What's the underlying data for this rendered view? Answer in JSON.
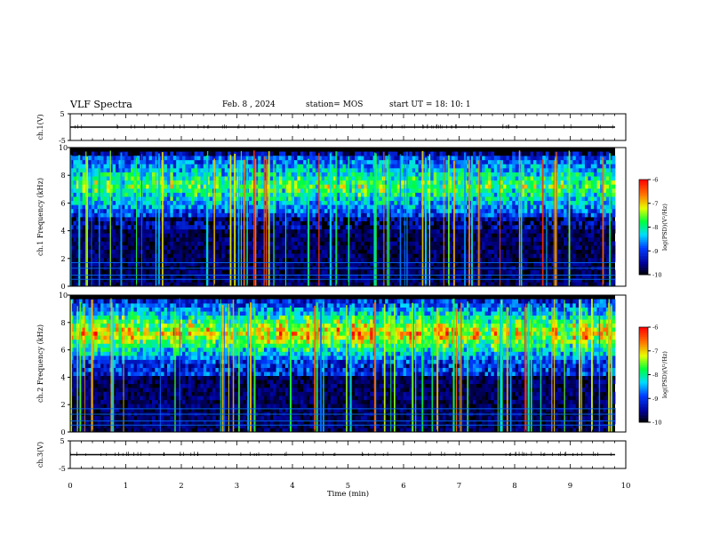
{
  "header": {
    "title": "VLF Spectra",
    "date": "Feb. 8 , 2024",
    "station": "station= MOS",
    "start": "start UT =  18: 10: 1"
  },
  "chart_data": [
    {
      "type": "line",
      "name": "ch1-waveform",
      "ylabel": "ch.1(V)",
      "ylim": [
        -5,
        5
      ],
      "yticks": [
        5,
        -5
      ],
      "xlim": [
        0,
        10
      ],
      "trace_level": 0
    },
    {
      "type": "heatmap",
      "name": "ch1-spectrogram",
      "ylabel": "ch.1 Frequency (kHz)",
      "ylim": [
        0,
        10
      ],
      "yticks": [
        0,
        2,
        4,
        6,
        8,
        10
      ],
      "xlim": [
        0,
        9.8
      ],
      "colorbar": {
        "label": "log(PSD)(V²/Hz)",
        "range": [
          -10,
          -6
        ],
        "ticks": [
          -6,
          -7,
          -8,
          -9,
          -10
        ]
      },
      "dominant_band_khz": [
        5,
        9.5
      ],
      "narrowband_lines_khz": [
        0.5,
        0.8,
        1.3,
        1.7
      ]
    },
    {
      "type": "heatmap",
      "name": "ch2-spectrogram",
      "ylabel": "ch.2 Frequency (kHz)",
      "ylim": [
        0,
        10
      ],
      "yticks": [
        0,
        2,
        4,
        6,
        8,
        10
      ],
      "xlim": [
        0,
        9.8
      ],
      "colorbar": {
        "label": "log(PSD)(V²/Hz)",
        "range": [
          -10,
          -6
        ],
        "ticks": [
          -6,
          -7,
          -8,
          -9,
          -10
        ]
      },
      "dominant_band_khz": [
        5,
        9.5
      ],
      "narrowband_lines_khz": [
        0.5,
        0.8,
        1.3,
        1.7
      ]
    },
    {
      "type": "line",
      "name": "ch3-waveform",
      "ylabel": "ch.3(V)",
      "ylim": [
        -5,
        5
      ],
      "yticks": [
        5,
        -5
      ],
      "xlim": [
        0,
        10
      ],
      "xlabel": "Time  (min)",
      "xticks": [
        0,
        1,
        2,
        3,
        4,
        5,
        6,
        7,
        8,
        9,
        10
      ],
      "trace_level": 0
    }
  ],
  "colors": {
    "background": "#000000",
    "low": "#0000c8",
    "mid": "#00ff00",
    "high": "#ffff00",
    "peak": "#ff0000"
  }
}
